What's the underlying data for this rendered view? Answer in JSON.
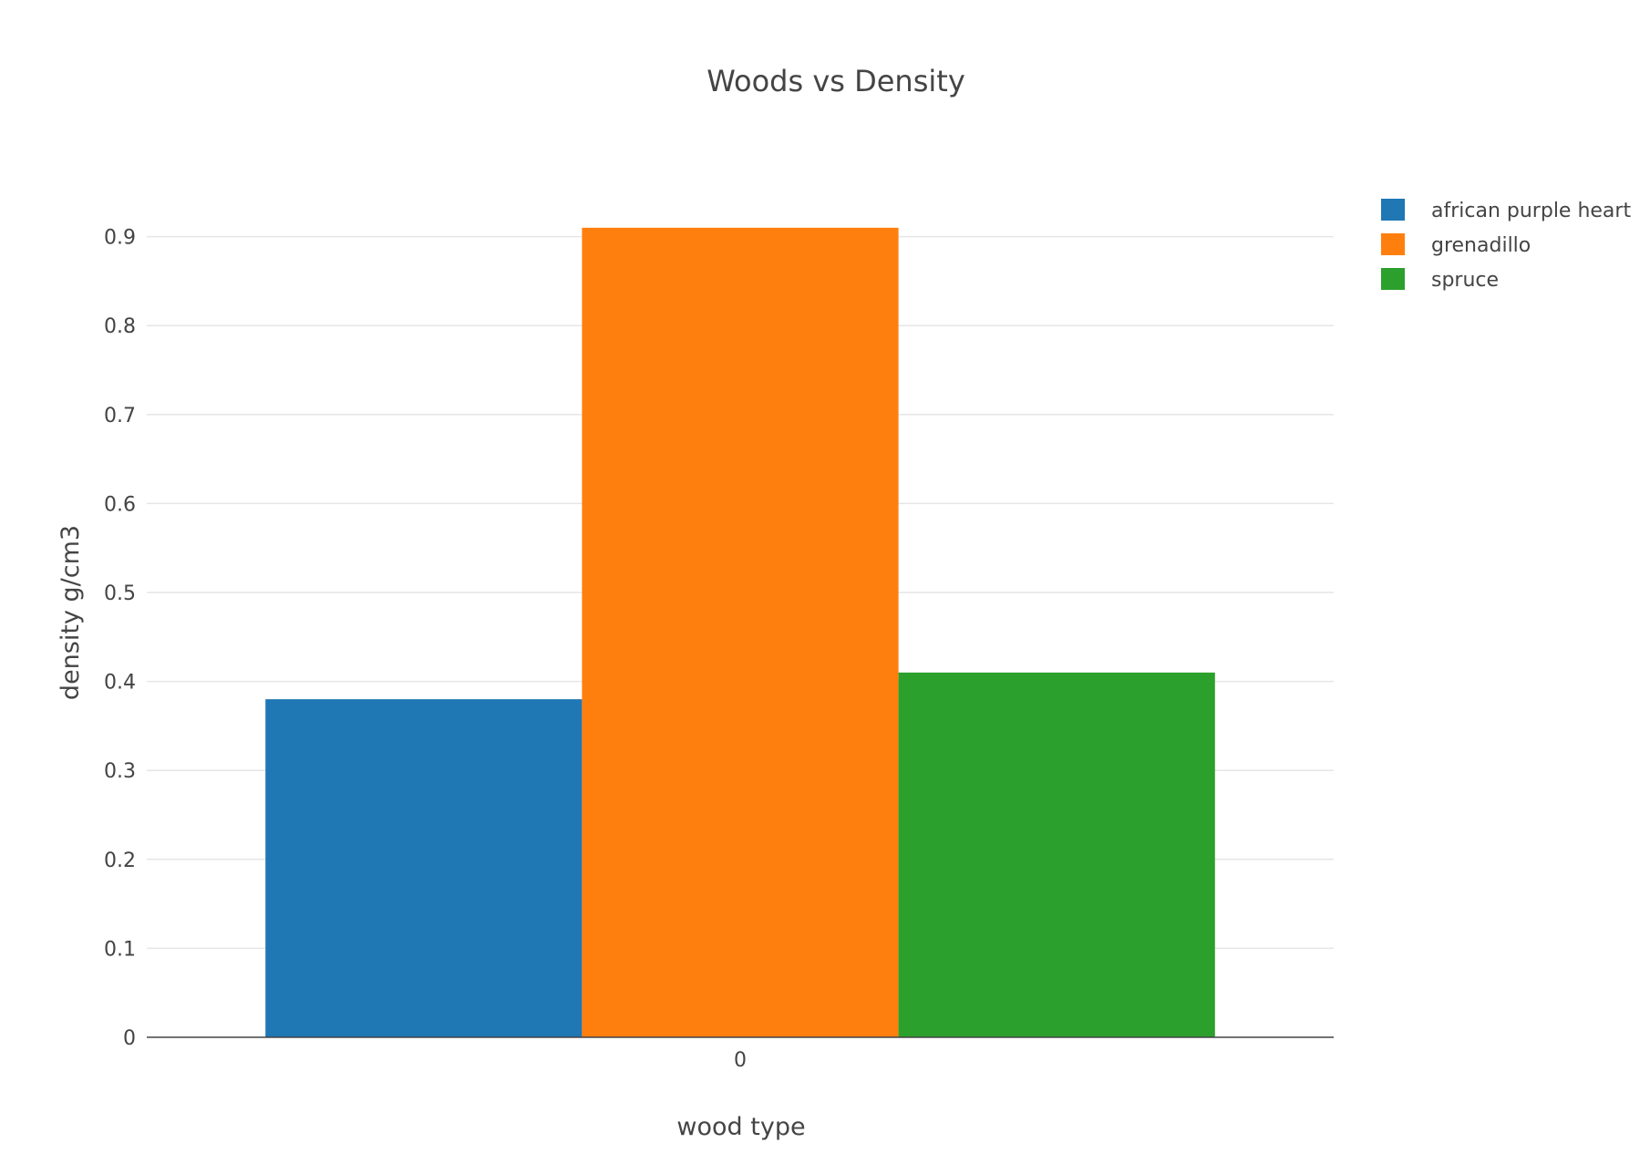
{
  "chart_data": {
    "type": "bar",
    "title": "Woods vs Density",
    "xlabel": "wood type",
    "ylabel": "density g/cm3",
    "categories": [
      "0"
    ],
    "series": [
      {
        "name": "african purple heart",
        "values": [
          0.38
        ],
        "color": "#1f77b4"
      },
      {
        "name": "grenadillo",
        "values": [
          0.91
        ],
        "color": "#ff7f0e"
      },
      {
        "name": "spruce",
        "values": [
          0.41
        ],
        "color": "#2ca02c"
      }
    ],
    "ylim": [
      0,
      0.958
    ],
    "yticks": [
      0,
      0.1,
      0.2,
      0.3,
      0.4,
      0.5,
      0.6,
      0.7,
      0.8,
      0.9
    ],
    "ytick_labels": [
      "0",
      "0.1",
      "0.2",
      "0.3",
      "0.4",
      "0.5",
      "0.6",
      "0.7",
      "0.8",
      "0.9"
    ],
    "grid": true,
    "legend_position": "top-right",
    "barmode": "group"
  }
}
